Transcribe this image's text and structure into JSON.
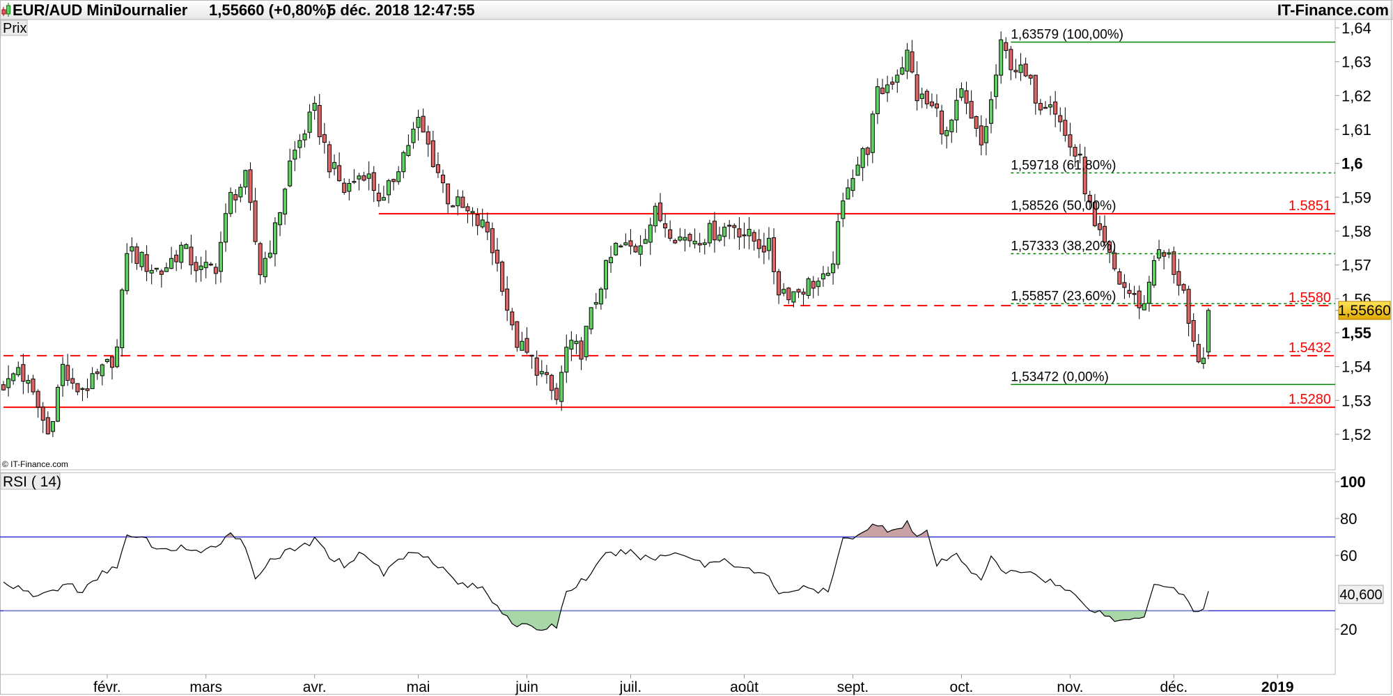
{
  "header": {
    "instrument": "EUR/AUD Mini",
    "period": "Journalier",
    "last": "1,55660 (+0,80%)",
    "datetime": "5 déc. 2018 12:47:55",
    "brand": "IT-Finance.com"
  },
  "price_panel": {
    "label": "Prix",
    "copyright": "© IT-Finance.com",
    "badge": "1,55660"
  },
  "rsi_panel": {
    "label": "RSI ( 14)",
    "badge": "40,600"
  },
  "colors": {
    "up": "#5fd35f",
    "down": "#e06666",
    "support": "#ff0000",
    "fib": "#008000",
    "rsi_band": "#3333cc",
    "overbought_fill": "#c9a3a3",
    "oversold_fill": "#a8d8a8",
    "badge": "#f5c400"
  },
  "chart_data": [
    {
      "type": "candlestick",
      "title": "EUR/AUD Mini Journalier",
      "x_unit": "trading day index (2018)",
      "ylim": [
        1.51,
        1.64
      ],
      "y_ticks": [
        "1,64",
        "1,63",
        "1,62",
        "1,61",
        "1,6",
        "1,59",
        "1,58",
        "1,57",
        "1,56",
        "1,55",
        "1,54",
        "1,53",
        "1,52"
      ],
      "y_tick_values": [
        1.64,
        1.63,
        1.62,
        1.61,
        1.6,
        1.59,
        1.58,
        1.57,
        1.56,
        1.55,
        1.54,
        1.53,
        1.52
      ],
      "x_ticks": [
        {
          "label": "févr.",
          "day": 21
        },
        {
          "label": "mars",
          "day": 41
        },
        {
          "label": "avr.",
          "day": 63
        },
        {
          "label": "mai",
          "day": 84
        },
        {
          "label": "juin",
          "day": 106
        },
        {
          "label": "juil.",
          "day": 127
        },
        {
          "label": "août",
          "day": 150
        },
        {
          "label": "sept.",
          "day": 172
        },
        {
          "label": "oct.",
          "day": 194
        },
        {
          "label": "nov.",
          "day": 216
        },
        {
          "label": "déc.",
          "day": 237
        },
        {
          "label": "2019",
          "day": 258
        }
      ],
      "close_keypoints": [
        [
          1,
          1.535
        ],
        [
          3,
          1.54
        ],
        [
          7,
          1.528
        ],
        [
          9,
          1.52
        ],
        [
          12,
          1.54
        ],
        [
          14,
          1.533
        ],
        [
          18,
          1.535
        ],
        [
          21,
          1.54
        ],
        [
          23,
          1.545
        ],
        [
          25,
          1.575
        ],
        [
          29,
          1.57
        ],
        [
          32,
          1.568
        ],
        [
          36,
          1.575
        ],
        [
          40,
          1.568
        ],
        [
          43,
          1.57
        ],
        [
          46,
          1.59
        ],
        [
          49,
          1.595
        ],
        [
          52,
          1.568
        ],
        [
          55,
          1.58
        ],
        [
          58,
          1.6
        ],
        [
          61,
          1.61
        ],
        [
          63,
          1.615
        ],
        [
          66,
          1.6
        ],
        [
          69,
          1.592
        ],
        [
          73,
          1.598
        ],
        [
          77,
          1.588
        ],
        [
          80,
          1.6
        ],
        [
          84,
          1.612
        ],
        [
          86,
          1.605
        ],
        [
          90,
          1.59
        ],
        [
          94,
          1.585
        ],
        [
          98,
          1.58
        ],
        [
          101,
          1.565
        ],
        [
          103,
          1.55
        ],
        [
          105,
          1.545
        ],
        [
          108,
          1.54
        ],
        [
          112,
          1.53
        ],
        [
          114,
          1.545
        ],
        [
          117,
          1.545
        ],
        [
          121,
          1.565
        ],
        [
          124,
          1.575
        ],
        [
          128,
          1.575
        ],
        [
          132,
          1.585
        ],
        [
          137,
          1.578
        ],
        [
          140,
          1.578
        ],
        [
          144,
          1.58
        ],
        [
          148,
          1.582
        ],
        [
          151,
          1.578
        ],
        [
          155,
          1.575
        ],
        [
          157,
          1.563
        ],
        [
          160,
          1.562
        ],
        [
          164,
          1.565
        ],
        [
          167,
          1.565
        ],
        [
          169,
          1.58
        ],
        [
          171,
          1.595
        ],
        [
          175,
          1.605
        ],
        [
          177,
          1.62
        ],
        [
          180,
          1.625
        ],
        [
          183,
          1.632
        ],
        [
          185,
          1.62
        ],
        [
          189,
          1.615
        ],
        [
          191,
          1.608
        ],
        [
          194,
          1.62
        ],
        [
          196,
          1.612
        ],
        [
          198,
          1.605
        ],
        [
          200,
          1.618
        ],
        [
          202,
          1.634
        ],
        [
          204,
          1.63
        ],
        [
          207,
          1.625
        ],
        [
          210,
          1.618
        ],
        [
          212,
          1.62
        ],
        [
          215,
          1.608
        ],
        [
          218,
          1.6
        ],
        [
          221,
          1.58
        ],
        [
          223,
          1.575
        ],
        [
          226,
          1.565
        ],
        [
          229,
          1.56
        ],
        [
          231,
          1.558
        ],
        [
          233,
          1.573
        ],
        [
          236,
          1.572
        ],
        [
          239,
          1.562
        ],
        [
          240,
          1.55
        ],
        [
          242,
          1.54
        ],
        [
          243,
          1.545
        ],
        [
          244,
          1.5566
        ]
      ],
      "horizontal_lines": [
        {
          "value": 1.5851,
          "label": "1.5851",
          "style": "solid",
          "from_day": 76
        },
        {
          "value": 1.558,
          "label": "1.5580",
          "style": "dashed",
          "from_day": 158
        },
        {
          "value": 1.5432,
          "label": "1.5432",
          "style": "dashed",
          "from_day": 0
        },
        {
          "value": 1.528,
          "label": "1.5280",
          "style": "solid",
          "from_day": 0
        }
      ],
      "fibonacci": {
        "from_day": 204,
        "levels": [
          {
            "value": 1.63579,
            "label": "1,63579 (100,00%)",
            "style": "solid"
          },
          {
            "value": 1.59718,
            "label": "1,59718 (61,80%)",
            "style": "dotted"
          },
          {
            "value": 1.58526,
            "label": "1,58526 (50,00%)",
            "style": "none"
          },
          {
            "value": 1.57333,
            "label": "1,57333 (38,20%)",
            "style": "dotted"
          },
          {
            "value": 1.55857,
            "label": "1,55857 (23,60%)",
            "style": "dotted"
          },
          {
            "value": 1.53472,
            "label": "1,53472 (0,00%)",
            "style": "solid"
          }
        ]
      },
      "last_close": 1.5566
    },
    {
      "type": "line",
      "title": "RSI ( 14)",
      "ylim": [
        0,
        100
      ],
      "y_ticks": [
        "100",
        "80",
        "60",
        "20"
      ],
      "y_tick_values": [
        100,
        80,
        60,
        20
      ],
      "bands": [
        70,
        30
      ],
      "keypoints": [
        [
          1,
          45
        ],
        [
          4,
          40
        ],
        [
          7,
          38
        ],
        [
          11,
          42
        ],
        [
          13,
          45
        ],
        [
          16,
          40
        ],
        [
          20,
          50
        ],
        [
          23,
          55
        ],
        [
          25,
          70
        ],
        [
          29,
          68
        ],
        [
          32,
          62
        ],
        [
          36,
          65
        ],
        [
          40,
          60
        ],
        [
          43,
          66
        ],
        [
          46,
          72
        ],
        [
          48,
          70
        ],
        [
          51,
          48
        ],
        [
          54,
          58
        ],
        [
          58,
          62
        ],
        [
          63,
          68
        ],
        [
          66,
          60
        ],
        [
          69,
          55
        ],
        [
          73,
          62
        ],
        [
          77,
          50
        ],
        [
          80,
          58
        ],
        [
          84,
          63
        ],
        [
          88,
          55
        ],
        [
          92,
          45
        ],
        [
          97,
          42
        ],
        [
          101,
          30
        ],
        [
          104,
          22
        ],
        [
          108,
          20
        ],
        [
          112,
          22
        ],
        [
          114,
          40
        ],
        [
          119,
          50
        ],
        [
          122,
          60
        ],
        [
          126,
          62
        ],
        [
          131,
          58
        ],
        [
          137,
          62
        ],
        [
          142,
          55
        ],
        [
          146,
          58
        ],
        [
          151,
          52
        ],
        [
          155,
          48
        ],
        [
          157,
          40
        ],
        [
          162,
          42
        ],
        [
          167,
          40
        ],
        [
          170,
          68
        ],
        [
          173,
          72
        ],
        [
          176,
          76
        ],
        [
          180,
          74
        ],
        [
          183,
          78
        ],
        [
          185,
          70
        ],
        [
          187,
          72
        ],
        [
          189,
          55
        ],
        [
          193,
          60
        ],
        [
          196,
          52
        ],
        [
          198,
          48
        ],
        [
          200,
          58
        ],
        [
          203,
          50
        ],
        [
          207,
          52
        ],
        [
          212,
          46
        ],
        [
          216,
          40
        ],
        [
          221,
          30
        ],
        [
          223,
          28
        ],
        [
          226,
          24
        ],
        [
          229,
          26
        ],
        [
          231,
          28
        ],
        [
          233,
          45
        ],
        [
          236,
          44
        ],
        [
          239,
          38
        ],
        [
          242,
          28
        ],
        [
          243,
          30
        ],
        [
          244,
          40.6
        ]
      ],
      "last_value": 40.6
    }
  ]
}
